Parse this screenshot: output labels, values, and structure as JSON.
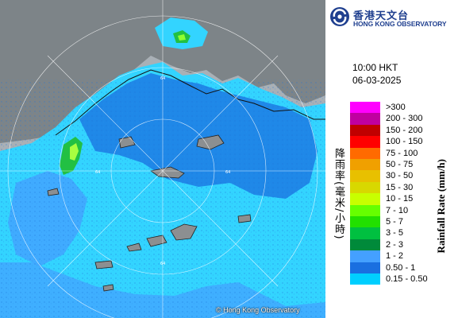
{
  "header": {
    "org_name_zh": "香港天文台",
    "org_name_en": "HONG KONG OBSERVATORY"
  },
  "timestamp": {
    "time": "10:00 HKT",
    "date": "06-03-2025"
  },
  "map": {
    "copyright": "© Hong Kong Observatory",
    "range_ring_labels": [
      "64",
      "64",
      "64",
      "64"
    ]
  },
  "legend": {
    "title_en": "Rainfall Rate (mm/h)",
    "title_zh": "降雨率(毫米/小時)",
    "bins": [
      {
        "label": ">300",
        "color": "#ff00ff"
      },
      {
        "label": "200 - 300",
        "color": "#c000a0"
      },
      {
        "label": "150 - 200",
        "color": "#c00000"
      },
      {
        "label": "100 - 150",
        "color": "#ff0000"
      },
      {
        "label": "75 - 100",
        "color": "#ff6a00"
      },
      {
        "label": "50 - 75",
        "color": "#f0a000"
      },
      {
        "label": "30 - 50",
        "color": "#e8c000"
      },
      {
        "label": "15 - 30",
        "color": "#d8d800"
      },
      {
        "label": "10 - 15",
        "color": "#c8ff00"
      },
      {
        "label": "7 - 10",
        "color": "#66ff00"
      },
      {
        "label": "5 - 7",
        "color": "#22e000"
      },
      {
        "label": "3 - 5",
        "color": "#00c040"
      },
      {
        "label": "2 - 3",
        "color": "#008a3a"
      },
      {
        "label": "1 - 2",
        "color": "#44a0ff"
      },
      {
        "label": "0.50 - 1",
        "color": "#1a6fe0"
      },
      {
        "label": "0.15 - 0.50",
        "color": "#00cfff"
      }
    ]
  }
}
